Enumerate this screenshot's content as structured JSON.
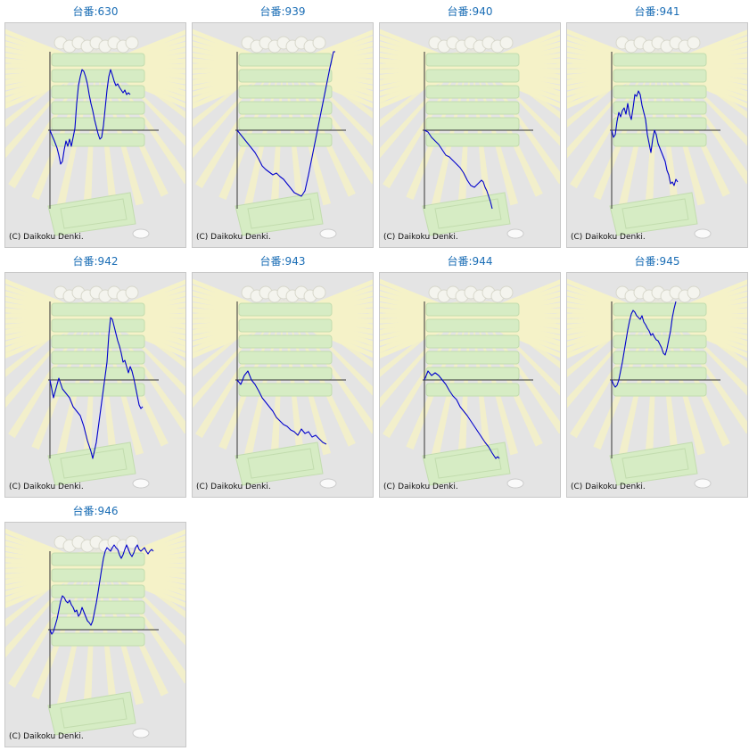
{
  "copyright": "(C) Daikoku Denki.",
  "colors": {
    "title": "#1a6db5",
    "line": "#0000cc",
    "axis": "#333333",
    "panel": "#e4e4e4"
  },
  "machines": [
    {
      "label": "台番:630",
      "points": [
        [
          0,
          0
        ],
        [
          2,
          -5
        ],
        [
          5,
          -12
        ],
        [
          8,
          -20
        ],
        [
          10,
          -28
        ],
        [
          12,
          -38
        ],
        [
          14,
          -35
        ],
        [
          16,
          -22
        ],
        [
          18,
          -12
        ],
        [
          20,
          -18
        ],
        [
          22,
          -10
        ],
        [
          24,
          -18
        ],
        [
          26,
          -8
        ],
        [
          28,
          2
        ],
        [
          30,
          30
        ],
        [
          32,
          50
        ],
        [
          34,
          60
        ],
        [
          36,
          68
        ],
        [
          38,
          66
        ],
        [
          40,
          60
        ],
        [
          42,
          52
        ],
        [
          44,
          40
        ],
        [
          46,
          30
        ],
        [
          48,
          22
        ],
        [
          50,
          12
        ],
        [
          52,
          4
        ],
        [
          54,
          -4
        ],
        [
          56,
          -10
        ],
        [
          58,
          -8
        ],
        [
          60,
          5
        ],
        [
          62,
          25
        ],
        [
          64,
          45
        ],
        [
          66,
          60
        ],
        [
          68,
          68
        ],
        [
          70,
          62
        ],
        [
          72,
          55
        ],
        [
          74,
          50
        ],
        [
          76,
          52
        ],
        [
          78,
          48
        ],
        [
          80,
          45
        ],
        [
          82,
          42
        ],
        [
          84,
          45
        ],
        [
          86,
          40
        ],
        [
          88,
          42
        ],
        [
          90,
          40
        ]
      ]
    },
    {
      "label": "台番:939",
      "points": [
        [
          0,
          0
        ],
        [
          4,
          -5
        ],
        [
          8,
          -10
        ],
        [
          12,
          -15
        ],
        [
          16,
          -20
        ],
        [
          20,
          -25
        ],
        [
          24,
          -32
        ],
        [
          28,
          -40
        ],
        [
          32,
          -44
        ],
        [
          36,
          -47
        ],
        [
          40,
          -50
        ],
        [
          44,
          -48
        ],
        [
          48,
          -52
        ],
        [
          52,
          -55
        ],
        [
          56,
          -60
        ],
        [
          60,
          -65
        ],
        [
          64,
          -70
        ],
        [
          68,
          -72
        ],
        [
          72,
          -74
        ],
        [
          76,
          -68
        ],
        [
          80,
          -50
        ],
        [
          84,
          -30
        ],
        [
          88,
          -10
        ],
        [
          92,
          10
        ],
        [
          96,
          30
        ],
        [
          100,
          50
        ],
        [
          104,
          70
        ],
        [
          108,
          88
        ],
        [
          110,
          88
        ]
      ]
    },
    {
      "label": "台番:940",
      "points": [
        [
          0,
          0
        ],
        [
          4,
          -2
        ],
        [
          8,
          -8
        ],
        [
          12,
          -12
        ],
        [
          16,
          -16
        ],
        [
          20,
          -22
        ],
        [
          24,
          -28
        ],
        [
          28,
          -30
        ],
        [
          32,
          -34
        ],
        [
          36,
          -38
        ],
        [
          40,
          -42
        ],
        [
          44,
          -48
        ],
        [
          48,
          -56
        ],
        [
          52,
          -62
        ],
        [
          56,
          -64
        ],
        [
          60,
          -60
        ],
        [
          64,
          -56
        ],
        [
          66,
          -58
        ],
        [
          68,
          -64
        ],
        [
          70,
          -68
        ],
        [
          72,
          -74
        ],
        [
          74,
          -80
        ],
        [
          76,
          -88
        ]
      ]
    },
    {
      "label": "台番:941",
      "points": [
        [
          0,
          0
        ],
        [
          2,
          -8
        ],
        [
          4,
          -5
        ],
        [
          6,
          10
        ],
        [
          8,
          20
        ],
        [
          10,
          15
        ],
        [
          12,
          22
        ],
        [
          14,
          25
        ],
        [
          16,
          18
        ],
        [
          18,
          30
        ],
        [
          20,
          18
        ],
        [
          22,
          12
        ],
        [
          24,
          25
        ],
        [
          26,
          40
        ],
        [
          28,
          38
        ],
        [
          30,
          44
        ],
        [
          32,
          40
        ],
        [
          34,
          28
        ],
        [
          36,
          20
        ],
        [
          38,
          12
        ],
        [
          40,
          -5
        ],
        [
          42,
          -15
        ],
        [
          44,
          -25
        ],
        [
          46,
          -10
        ],
        [
          48,
          0
        ],
        [
          50,
          -5
        ],
        [
          52,
          -15
        ],
        [
          54,
          -20
        ],
        [
          56,
          -25
        ],
        [
          58,
          -30
        ],
        [
          60,
          -35
        ],
        [
          62,
          -45
        ],
        [
          64,
          -50
        ],
        [
          66,
          -60
        ],
        [
          68,
          -58
        ],
        [
          70,
          -62
        ],
        [
          72,
          -55
        ],
        [
          74,
          -58
        ]
      ]
    },
    {
      "label": "台番:942",
      "points": [
        [
          0,
          0
        ],
        [
          4,
          -20
        ],
        [
          8,
          -5
        ],
        [
          10,
          2
        ],
        [
          14,
          -10
        ],
        [
          18,
          -15
        ],
        [
          22,
          -20
        ],
        [
          26,
          -30
        ],
        [
          30,
          -35
        ],
        [
          34,
          -40
        ],
        [
          38,
          -52
        ],
        [
          42,
          -68
        ],
        [
          46,
          -80
        ],
        [
          48,
          -88
        ],
        [
          52,
          -70
        ],
        [
          56,
          -40
        ],
        [
          60,
          -10
        ],
        [
          64,
          20
        ],
        [
          66,
          50
        ],
        [
          68,
          70
        ],
        [
          70,
          68
        ],
        [
          72,
          60
        ],
        [
          74,
          52
        ],
        [
          76,
          44
        ],
        [
          78,
          38
        ],
        [
          80,
          30
        ],
        [
          82,
          20
        ],
        [
          84,
          22
        ],
        [
          86,
          15
        ],
        [
          88,
          8
        ],
        [
          90,
          15
        ],
        [
          92,
          10
        ],
        [
          94,
          2
        ],
        [
          96,
          -8
        ],
        [
          98,
          -18
        ],
        [
          100,
          -28
        ],
        [
          102,
          -32
        ],
        [
          104,
          -30
        ]
      ]
    },
    {
      "label": "台番:943",
      "points": [
        [
          0,
          0
        ],
        [
          4,
          -5
        ],
        [
          8,
          5
        ],
        [
          12,
          10
        ],
        [
          16,
          0
        ],
        [
          20,
          -5
        ],
        [
          24,
          -12
        ],
        [
          28,
          -20
        ],
        [
          32,
          -25
        ],
        [
          36,
          -30
        ],
        [
          40,
          -35
        ],
        [
          44,
          -42
        ],
        [
          48,
          -46
        ],
        [
          52,
          -50
        ],
        [
          56,
          -52
        ],
        [
          60,
          -56
        ],
        [
          64,
          -58
        ],
        [
          68,
          -62
        ],
        [
          72,
          -55
        ],
        [
          76,
          -60
        ],
        [
          80,
          -58
        ],
        [
          84,
          -64
        ],
        [
          88,
          -62
        ],
        [
          92,
          -66
        ],
        [
          96,
          -70
        ],
        [
          100,
          -72
        ]
      ]
    },
    {
      "label": "台番:944",
      "points": [
        [
          0,
          0
        ],
        [
          4,
          10
        ],
        [
          8,
          5
        ],
        [
          12,
          8
        ],
        [
          16,
          5
        ],
        [
          20,
          0
        ],
        [
          24,
          -5
        ],
        [
          28,
          -12
        ],
        [
          32,
          -18
        ],
        [
          36,
          -22
        ],
        [
          40,
          -30
        ],
        [
          44,
          -35
        ],
        [
          48,
          -40
        ],
        [
          52,
          -46
        ],
        [
          56,
          -52
        ],
        [
          60,
          -58
        ],
        [
          64,
          -64
        ],
        [
          68,
          -70
        ],
        [
          72,
          -75
        ],
        [
          76,
          -82
        ],
        [
          80,
          -88
        ],
        [
          82,
          -86
        ],
        [
          84,
          -88
        ]
      ]
    },
    {
      "label": "台番:945",
      "points": [
        [
          0,
          0
        ],
        [
          2,
          -5
        ],
        [
          4,
          -8
        ],
        [
          6,
          -6
        ],
        [
          8,
          0
        ],
        [
          10,
          10
        ],
        [
          12,
          20
        ],
        [
          14,
          32
        ],
        [
          16,
          44
        ],
        [
          18,
          56
        ],
        [
          20,
          66
        ],
        [
          22,
          74
        ],
        [
          24,
          78
        ],
        [
          26,
          76
        ],
        [
          28,
          72
        ],
        [
          30,
          70
        ],
        [
          32,
          68
        ],
        [
          34,
          72
        ],
        [
          36,
          65
        ],
        [
          38,
          62
        ],
        [
          40,
          58
        ],
        [
          42,
          55
        ],
        [
          44,
          50
        ],
        [
          46,
          52
        ],
        [
          48,
          48
        ],
        [
          50,
          45
        ],
        [
          52,
          44
        ],
        [
          54,
          40
        ],
        [
          56,
          36
        ],
        [
          58,
          30
        ],
        [
          60,
          28
        ],
        [
          62,
          35
        ],
        [
          64,
          45
        ],
        [
          66,
          55
        ],
        [
          68,
          70
        ],
        [
          70,
          80
        ],
        [
          72,
          88
        ]
      ]
    },
    {
      "label": "台番:946",
      "points": [
        [
          0,
          0
        ],
        [
          2,
          -5
        ],
        [
          4,
          -2
        ],
        [
          6,
          5
        ],
        [
          8,
          12
        ],
        [
          10,
          22
        ],
        [
          12,
          32
        ],
        [
          14,
          38
        ],
        [
          16,
          36
        ],
        [
          18,
          32
        ],
        [
          20,
          30
        ],
        [
          22,
          33
        ],
        [
          24,
          28
        ],
        [
          26,
          25
        ],
        [
          28,
          20
        ],
        [
          30,
          22
        ],
        [
          32,
          15
        ],
        [
          34,
          18
        ],
        [
          36,
          25
        ],
        [
          38,
          20
        ],
        [
          40,
          15
        ],
        [
          42,
          10
        ],
        [
          44,
          8
        ],
        [
          46,
          5
        ],
        [
          48,
          10
        ],
        [
          50,
          20
        ],
        [
          52,
          30
        ],
        [
          54,
          42
        ],
        [
          56,
          55
        ],
        [
          58,
          68
        ],
        [
          60,
          80
        ],
        [
          62,
          88
        ],
        [
          64,
          92
        ],
        [
          66,
          90
        ],
        [
          68,
          88
        ],
        [
          70,
          92
        ],
        [
          72,
          95
        ],
        [
          74,
          92
        ],
        [
          76,
          90
        ],
        [
          78,
          84
        ],
        [
          80,
          80
        ],
        [
          82,
          84
        ],
        [
          84,
          90
        ],
        [
          86,
          95
        ],
        [
          88,
          90
        ],
        [
          90,
          85
        ],
        [
          92,
          82
        ],
        [
          94,
          86
        ],
        [
          96,
          92
        ],
        [
          98,
          95
        ],
        [
          100,
          90
        ],
        [
          102,
          88
        ],
        [
          104,
          90
        ],
        [
          106,
          92
        ],
        [
          108,
          88
        ],
        [
          110,
          85
        ],
        [
          112,
          88
        ],
        [
          114,
          90
        ],
        [
          116,
          88
        ]
      ]
    }
  ]
}
